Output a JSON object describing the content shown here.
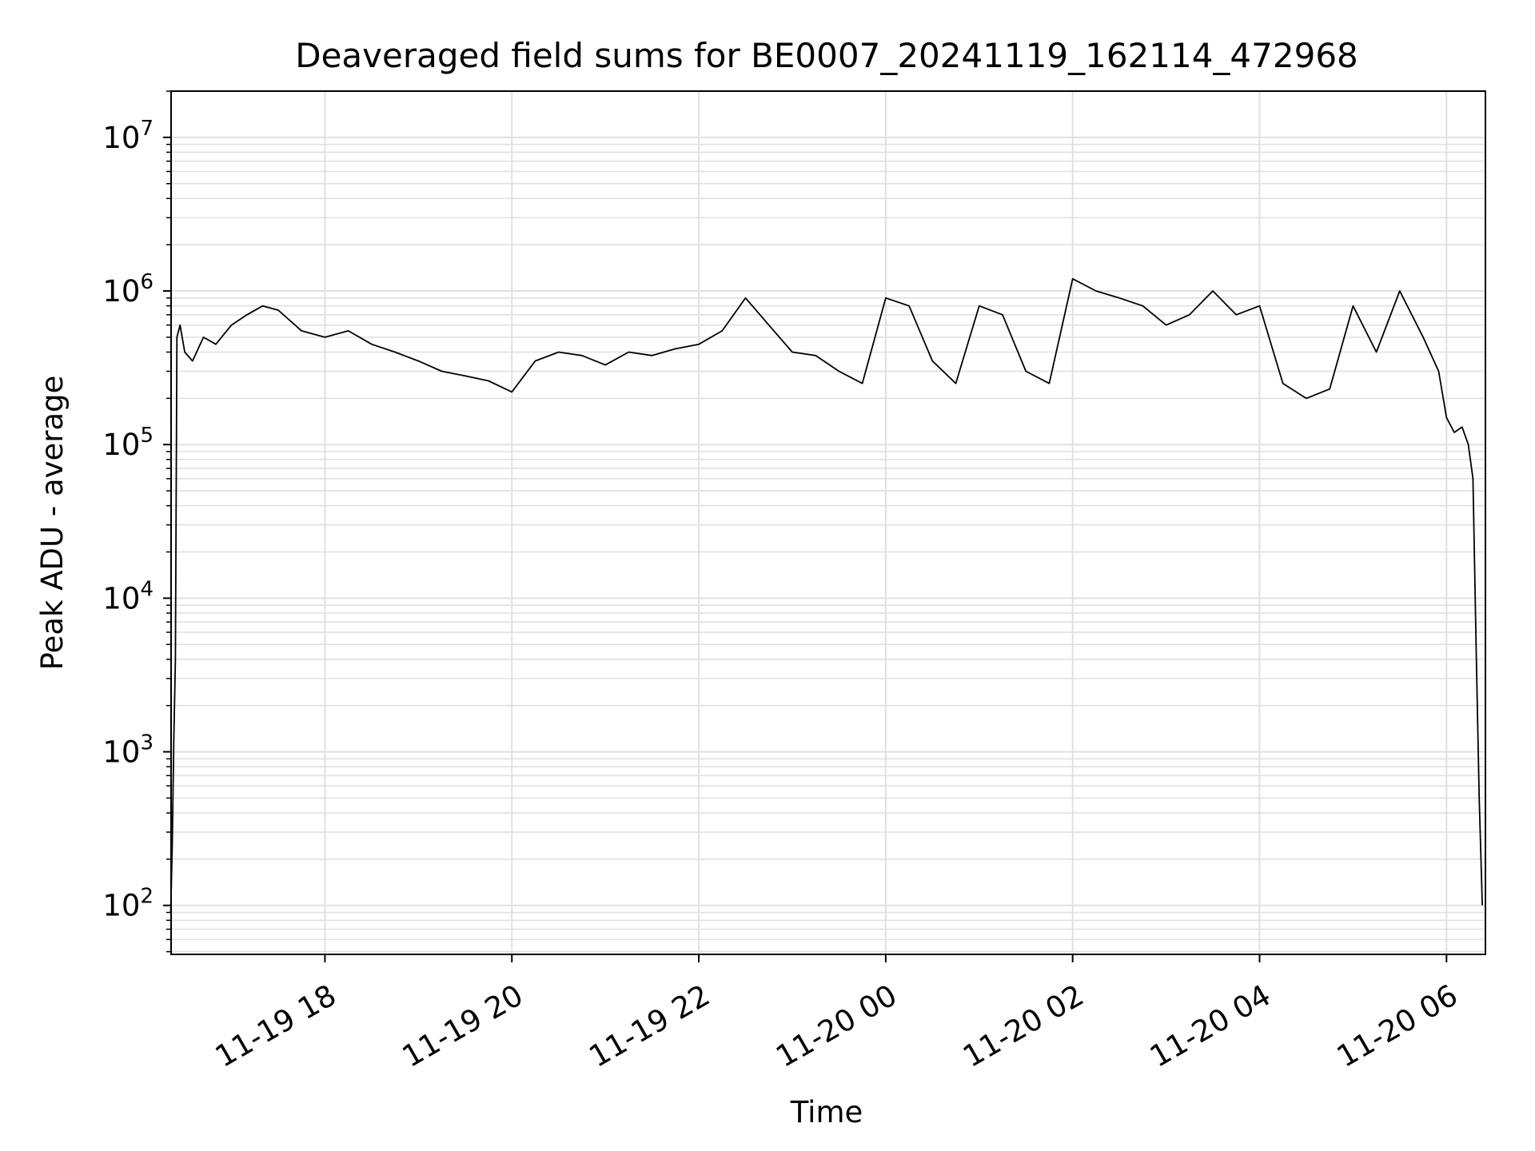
{
  "chart_data": {
    "type": "line",
    "title": "Deaveraged field sums for BE0007_20241119_162114_472968",
    "xlabel": "Time",
    "ylabel": "Peak ADU - average",
    "x_type": "datetime",
    "x_range": [
      "2024-11-19T16:21:14",
      "2024-11-20T06:25:00"
    ],
    "x_ticks": [
      {
        "value": "2024-11-19T18:00",
        "label": "11-19 18"
      },
      {
        "value": "2024-11-19T20:00",
        "label": "11-19 20"
      },
      {
        "value": "2024-11-19T22:00",
        "label": "11-19 22"
      },
      {
        "value": "2024-11-20T00:00",
        "label": "11-20 00"
      },
      {
        "value": "2024-11-20T02:00",
        "label": "11-20 02"
      },
      {
        "value": "2024-11-20T04:00",
        "label": "11-20 04"
      },
      {
        "value": "2024-11-20T06:00",
        "label": "11-20 06"
      }
    ],
    "y_scale": "log",
    "ylim": [
      48,
      20000000
    ],
    "y_ticks": [
      {
        "value": 100,
        "base": "10",
        "exp": "2"
      },
      {
        "value": 1000,
        "base": "10",
        "exp": "3"
      },
      {
        "value": 10000,
        "base": "10",
        "exp": "4"
      },
      {
        "value": 100000,
        "base": "10",
        "exp": "5"
      },
      {
        "value": 1000000,
        "base": "10",
        "exp": "6"
      },
      {
        "value": 10000000,
        "base": "10",
        "exp": "7"
      }
    ],
    "grid": true,
    "line_color": "#000000",
    "grid_color": "#e0e0e0",
    "series": [
      {
        "x": [
          "2024-11-19T16:21",
          "2024-11-19T16:22",
          "2024-11-19T16:23",
          "2024-11-19T16:24",
          "2024-11-19T16:25",
          "2024-11-19T16:27",
          "2024-11-19T16:30",
          "2024-11-19T16:35",
          "2024-11-19T16:42",
          "2024-11-19T16:50",
          "2024-11-19T17:00",
          "2024-11-19T17:10",
          "2024-11-19T17:20",
          "2024-11-19T17:30",
          "2024-11-19T17:45",
          "2024-11-19T18:00",
          "2024-11-19T18:15",
          "2024-11-19T18:30",
          "2024-11-19T18:45",
          "2024-11-19T19:00",
          "2024-11-19T19:15",
          "2024-11-19T19:30",
          "2024-11-19T19:45",
          "2024-11-19T20:00",
          "2024-11-19T20:15",
          "2024-11-19T20:30",
          "2024-11-19T20:45",
          "2024-11-19T21:00",
          "2024-11-19T21:15",
          "2024-11-19T21:30",
          "2024-11-19T21:45",
          "2024-11-19T22:00",
          "2024-11-19T22:15",
          "2024-11-19T22:30",
          "2024-11-19T22:45",
          "2024-11-19T23:00",
          "2024-11-19T23:15",
          "2024-11-19T23:30",
          "2024-11-19T23:45",
          "2024-11-20T00:00",
          "2024-11-20T00:15",
          "2024-11-20T00:30",
          "2024-11-20T00:45",
          "2024-11-20T01:00",
          "2024-11-20T01:15",
          "2024-11-20T01:30",
          "2024-11-20T01:45",
          "2024-11-20T02:00",
          "2024-11-20T02:15",
          "2024-11-20T02:30",
          "2024-11-20T02:45",
          "2024-11-20T03:00",
          "2024-11-20T03:15",
          "2024-11-20T03:30",
          "2024-11-20T03:45",
          "2024-11-20T04:00",
          "2024-11-20T04:15",
          "2024-11-20T04:30",
          "2024-11-20T04:45",
          "2024-11-20T05:00",
          "2024-11-20T05:15",
          "2024-11-20T05:30",
          "2024-11-20T05:45",
          "2024-11-20T05:55",
          "2024-11-20T06:00",
          "2024-11-20T06:05",
          "2024-11-20T06:10",
          "2024-11-20T06:14",
          "2024-11-20T06:17",
          "2024-11-20T06:19",
          "2024-11-20T06:21",
          "2024-11-20T06:23"
        ],
        "y": [
          90,
          250,
          1200,
          4000,
          500000,
          600000,
          400000,
          350000,
          500000,
          450000,
          600000,
          700000,
          800000,
          750000,
          550000,
          500000,
          550000,
          450000,
          400000,
          350000,
          300000,
          280000,
          260000,
          220000,
          350000,
          400000,
          380000,
          330000,
          400000,
          380000,
          420000,
          450000,
          550000,
          900000,
          600000,
          400000,
          380000,
          300000,
          250000,
          900000,
          800000,
          350000,
          250000,
          800000,
          700000,
          300000,
          250000,
          1200000,
          1000000,
          900000,
          800000,
          600000,
          700000,
          1000000,
          700000,
          800000,
          250000,
          200000,
          230000,
          800000,
          400000,
          1000000,
          500000,
          300000,
          150000,
          120000,
          130000,
          100000,
          60000,
          5000,
          500,
          100
        ]
      }
    ]
  }
}
